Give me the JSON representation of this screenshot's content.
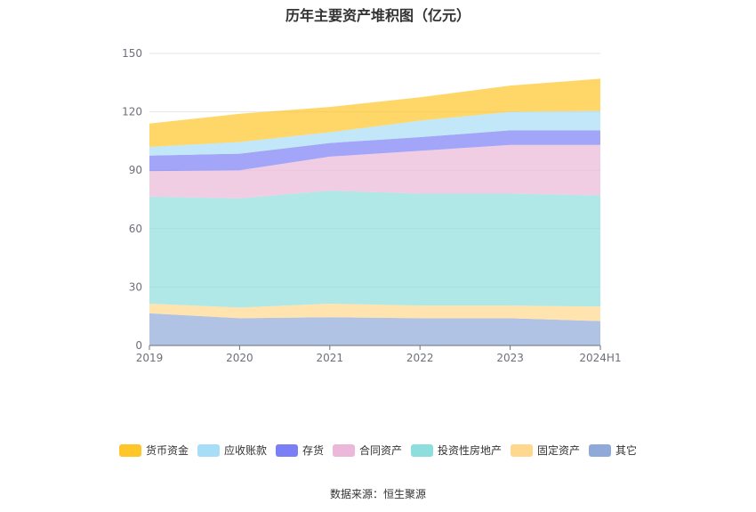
{
  "chart_data": {
    "type": "area",
    "stacked": true,
    "title": "历年主要资产堆积图（亿元）",
    "categories": [
      "2019",
      "2020",
      "2021",
      "2022",
      "2023",
      "2024H1"
    ],
    "ylim": [
      0,
      150
    ],
    "yticks": [
      0,
      30,
      60,
      90,
      120,
      150
    ],
    "grid": true,
    "legend_position": "bottom",
    "series": [
      {
        "name": "其它",
        "color": "#8fa9d9",
        "values": [
          16.5,
          14.0,
          14.5,
          14.0,
          14.0,
          12.5
        ]
      },
      {
        "name": "固定资产",
        "color": "#ffd88f",
        "values": [
          5.0,
          5.5,
          7.0,
          6.5,
          6.5,
          7.5
        ]
      },
      {
        "name": "投资性房地产",
        "color": "#8ddedd",
        "values": [
          55.0,
          56.0,
          58.0,
          57.5,
          57.5,
          57.0
        ]
      },
      {
        "name": "合同资产",
        "color": "#ebb8d9",
        "values": [
          13.0,
          14.5,
          17.5,
          22.0,
          25.0,
          26.0
        ]
      },
      {
        "name": "存货",
        "color": "#7b7ff5",
        "values": [
          8.0,
          8.5,
          7.0,
          7.0,
          7.5,
          7.5
        ]
      },
      {
        "name": "应收账款",
        "color": "#a8ddf7",
        "values": [
          4.5,
          6.0,
          5.5,
          8.5,
          9.5,
          10.0
        ]
      },
      {
        "name": "货币资金",
        "color": "#ffc629",
        "values": [
          12.0,
          14.5,
          13.0,
          12.0,
          13.5,
          16.5
        ]
      }
    ],
    "legend_order": [
      "货币资金",
      "应收账款",
      "存货",
      "合同资产",
      "投资性房地产",
      "固定资产",
      "其它"
    ]
  },
  "source": "数据来源：恒生聚源"
}
